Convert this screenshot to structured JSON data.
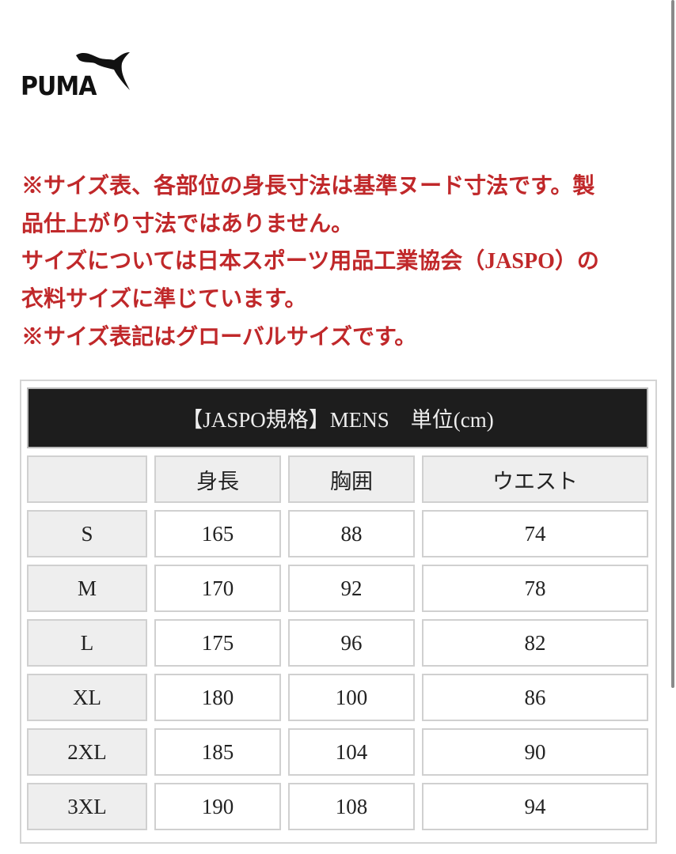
{
  "brand": {
    "logo_text": "PUMA"
  },
  "notes": [
    "※サイズ表、各部位の身長寸法は基準ヌード寸法です。製",
    "品仕上がり寸法ではありません。",
    "サイズについては日本スポーツ用品工業協会（JASPO）の",
    "衣料サイズに準じています。",
    "※サイズ表記はグローバルサイズです。"
  ],
  "colors": {
    "note_text": "#c0282a",
    "title_bar": "#1d1d1d",
    "header_cell": "#eeeeee"
  },
  "size_table": {
    "title": "【JASPO規格】MENS　単位(cm)",
    "headers": [
      "",
      "身長",
      "胸囲",
      "ウエスト"
    ],
    "rows": [
      [
        "S",
        "165",
        "88",
        "74"
      ],
      [
        "M",
        "170",
        "92",
        "78"
      ],
      [
        "L",
        "175",
        "96",
        "82"
      ],
      [
        "XL",
        "180",
        "100",
        "86"
      ],
      [
        "2XL",
        "185",
        "104",
        "90"
      ],
      [
        "3XL",
        "190",
        "108",
        "94"
      ]
    ]
  }
}
